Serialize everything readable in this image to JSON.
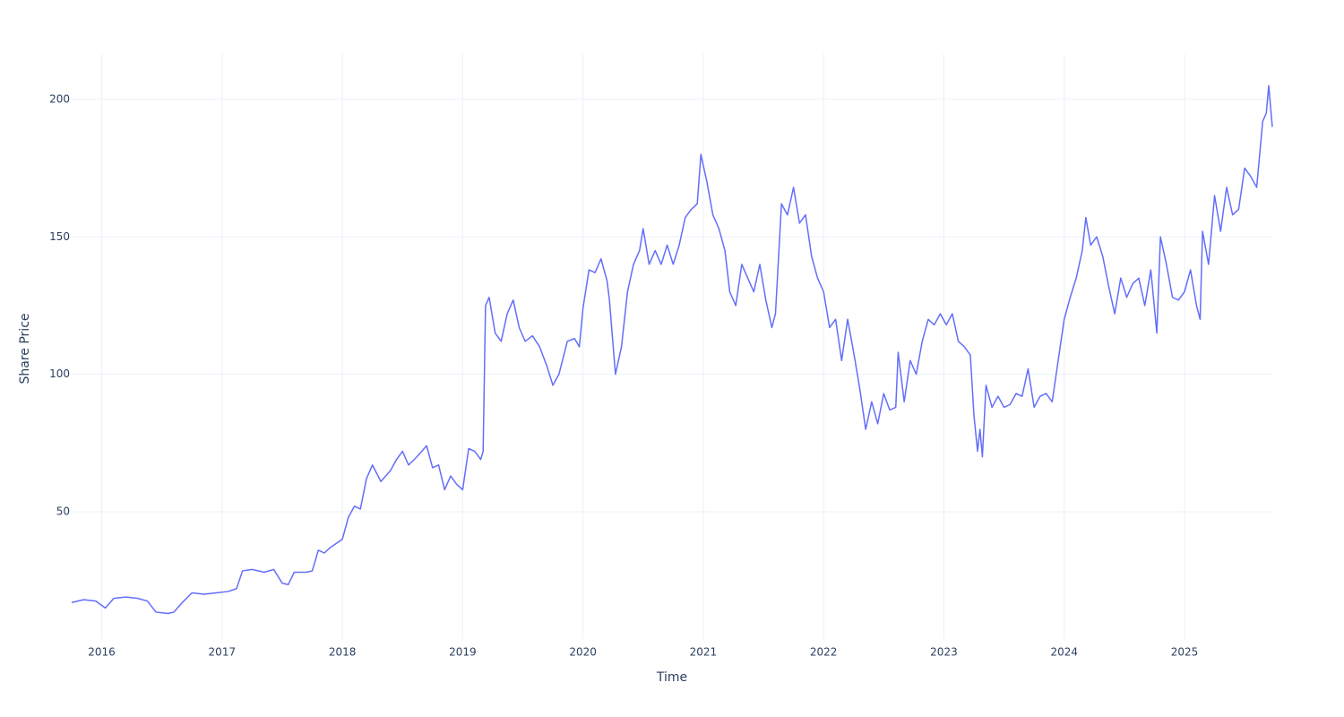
{
  "chart_data": {
    "type": "line",
    "x_label": "Time",
    "y_label": "Share Price",
    "color": "#636efa",
    "grid": true,
    "xlim": [
      2015.75,
      2025.73
    ],
    "ylim": [
      3.7,
      216.6
    ],
    "xticks": [
      2016,
      2017,
      2018,
      2019,
      2020,
      2021,
      2022,
      2023,
      2024,
      2025
    ],
    "yticks": [
      50,
      100,
      150,
      200
    ],
    "x": [
      2015.75,
      2015.85,
      2015.95,
      2016.03,
      2016.1,
      2016.2,
      2016.3,
      2016.38,
      2016.45,
      2016.55,
      2016.6,
      2016.67,
      2016.75,
      2016.85,
      2016.95,
      2017.05,
      2017.12,
      2017.17,
      2017.25,
      2017.35,
      2017.43,
      2017.5,
      2017.55,
      2017.6,
      2017.7,
      2017.75,
      2017.8,
      2017.85,
      2017.9,
      2018.0,
      2018.05,
      2018.1,
      2018.15,
      2018.2,
      2018.25,
      2018.32,
      2018.4,
      2018.45,
      2018.5,
      2018.55,
      2018.62,
      2018.7,
      2018.75,
      2018.8,
      2018.85,
      2018.9,
      2018.95,
      2019.0,
      2019.05,
      2019.1,
      2019.15,
      2019.17,
      2019.19,
      2019.22,
      2019.27,
      2019.32,
      2019.37,
      2019.42,
      2019.47,
      2019.52,
      2019.58,
      2019.64,
      2019.7,
      2019.75,
      2019.8,
      2019.87,
      2019.93,
      2019.97,
      2020.0,
      2020.05,
      2020.1,
      2020.15,
      2020.2,
      2020.22,
      2020.27,
      2020.32,
      2020.37,
      2020.42,
      2020.47,
      2020.5,
      2020.55,
      2020.6,
      2020.65,
      2020.7,
      2020.75,
      2020.8,
      2020.85,
      2020.9,
      2020.95,
      2020.98,
      2021.03,
      2021.08,
      2021.13,
      2021.18,
      2021.22,
      2021.27,
      2021.32,
      2021.37,
      2021.42,
      2021.47,
      2021.52,
      2021.57,
      2021.6,
      2021.65,
      2021.7,
      2021.75,
      2021.8,
      2021.85,
      2021.9,
      2021.95,
      2022.0,
      2022.05,
      2022.1,
      2022.15,
      2022.2,
      2022.25,
      2022.3,
      2022.35,
      2022.4,
      2022.45,
      2022.5,
      2022.55,
      2022.6,
      2022.62,
      2022.67,
      2022.72,
      2022.77,
      2022.82,
      2022.87,
      2022.92,
      2022.97,
      2023.02,
      2023.07,
      2023.12,
      2023.17,
      2023.22,
      2023.25,
      2023.28,
      2023.3,
      2023.32,
      2023.35,
      2023.4,
      2023.45,
      2023.5,
      2023.55,
      2023.6,
      2023.65,
      2023.7,
      2023.75,
      2023.8,
      2023.85,
      2023.9,
      2023.95,
      2024.0,
      2024.05,
      2024.1,
      2024.15,
      2024.18,
      2024.22,
      2024.27,
      2024.32,
      2024.37,
      2024.42,
      2024.47,
      2024.52,
      2024.57,
      2024.62,
      2024.67,
      2024.72,
      2024.77,
      2024.8,
      2024.85,
      2024.9,
      2024.95,
      2025.0,
      2025.05,
      2025.1,
      2025.13,
      2025.15,
      2025.2,
      2025.25,
      2025.3,
      2025.35,
      2025.4,
      2025.45,
      2025.5,
      2025.55,
      2025.6,
      2025.65,
      2025.68,
      2025.7,
      2025.73
    ],
    "values": [
      17,
      18,
      17.5,
      15,
      18.5,
      19,
      18.5,
      17.5,
      13.5,
      13,
      13.5,
      17,
      20.5,
      20,
      20.5,
      21,
      22,
      28.5,
      29,
      28,
      29,
      24,
      23.5,
      28,
      28,
      28.5,
      36,
      35,
      37,
      40,
      48,
      52,
      51,
      62,
      67,
      61,
      65,
      69,
      72,
      67,
      70,
      74,
      66,
      67,
      58,
      63,
      60,
      58,
      73,
      72,
      69,
      72,
      125,
      128,
      115,
      112,
      122,
      127,
      117,
      112,
      114,
      110,
      103,
      96,
      100,
      112,
      113,
      110,
      124,
      138,
      137,
      142,
      134,
      127,
      100,
      110,
      130,
      140,
      145,
      153,
      140,
      145,
      140,
      147,
      140,
      147,
      157,
      160,
      162,
      180,
      170,
      158,
      153,
      145,
      130,
      125,
      140,
      135,
      130,
      140,
      127,
      117,
      122,
      162,
      158,
      168,
      155,
      158,
      143,
      135,
      130,
      117,
      120,
      105,
      120,
      108,
      95,
      80,
      90,
      82,
      93,
      87,
      88,
      108,
      90,
      105,
      100,
      112,
      120,
      118,
      122,
      118,
      122,
      112,
      110,
      107,
      85,
      72,
      80,
      70,
      96,
      88,
      92,
      88,
      89,
      93,
      92,
      102,
      88,
      92,
      93,
      90,
      105,
      120,
      128,
      135,
      145,
      157,
      147,
      150,
      143,
      132,
      122,
      135,
      128,
      133,
      135,
      125,
      138,
      115,
      150,
      140,
      128,
      127,
      130,
      138,
      125,
      120,
      152,
      140,
      165,
      152,
      168,
      158,
      160,
      175,
      172,
      168,
      192,
      195,
      205,
      190
    ]
  }
}
